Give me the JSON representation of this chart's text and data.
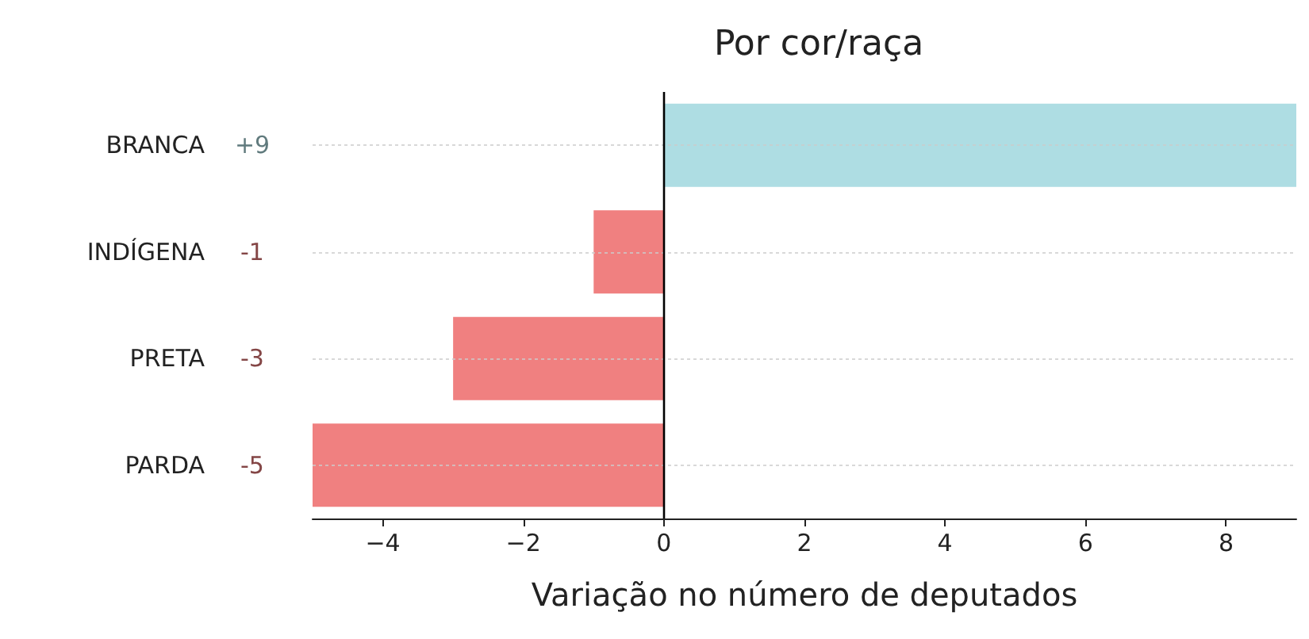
{
  "chart_data": {
    "type": "bar",
    "orientation": "horizontal",
    "title": "Por cor/raça",
    "xlabel": "Variação no número de deputados",
    "categories": [
      "BRANCA",
      "INDÍGENA",
      "PRETA",
      "PARDA"
    ],
    "values": [
      9,
      -1,
      -3,
      -5
    ],
    "colors": [
      "#aedde3",
      "#f08080",
      "#f08080",
      "#f08080"
    ],
    "value_labels": [
      "+9",
      "-1",
      "-3",
      "-5"
    ],
    "xlim": [
      -5,
      9
    ],
    "xticks": [
      {
        "value": -4,
        "label": "−4"
      },
      {
        "value": -2,
        "label": "−2"
      },
      0,
      2,
      4,
      6,
      8
    ],
    "grid": "y",
    "ref_lines": [
      {
        "axis": "x",
        "value": 0,
        "color": "#000000"
      }
    ]
  }
}
